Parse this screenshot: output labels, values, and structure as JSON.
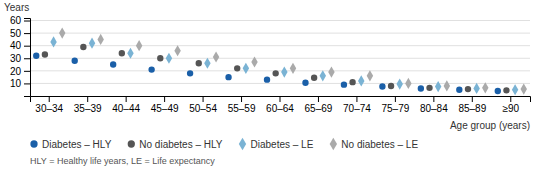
{
  "chart_data": {
    "type": "scatter",
    "ylabel": "Years",
    "xlabel": "Age group (years)",
    "annotations": [
      "HLY = Healthy life years, LE = Life expectancy"
    ],
    "categories": [
      "30–34",
      "35–39",
      "40–44",
      "45–49",
      "50–54",
      "55–59",
      "60–64",
      "65–69",
      "70–74",
      "75–79",
      "80–84",
      "85–89",
      "≥90"
    ],
    "series": [
      {
        "name": "Diabetes – HLY",
        "color": "#1a5fa8",
        "marker": "circle",
        "values": [
          32,
          28,
          25,
          21,
          18,
          15,
          13,
          10.5,
          9,
          7.5,
          6,
          5,
          4
        ]
      },
      {
        "name": "No diabetes – HLY",
        "color": "#555555",
        "marker": "circle",
        "values": [
          33,
          39,
          34,
          30,
          26,
          22,
          18,
          14.5,
          11,
          8,
          6.5,
          5.5,
          4.5
        ]
      },
      {
        "name": "Diabetes – LE",
        "color": "#7ab3d4",
        "marker": "diamond",
        "values": [
          43,
          42,
          34,
          30,
          26,
          22,
          19,
          16,
          12,
          9.5,
          7.5,
          6,
          5
        ]
      },
      {
        "name": "No diabetes – LE",
        "color": "#aaaaaa",
        "marker": "diamond",
        "values": [
          50,
          45,
          40,
          36,
          31,
          27,
          22,
          19,
          16,
          10,
          8,
          6.5,
          5.5
        ]
      }
    ],
    "ylim": [
      0,
      62
    ],
    "yticks": [
      10,
      20,
      30,
      40,
      50,
      60
    ],
    "grid": "y",
    "legend": "bottom"
  }
}
